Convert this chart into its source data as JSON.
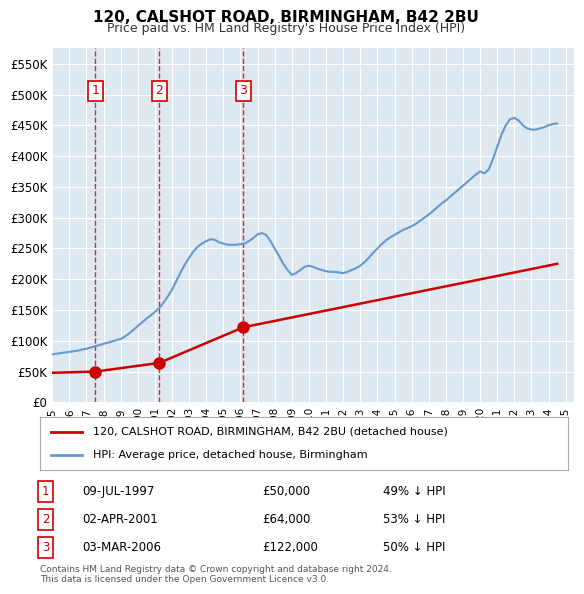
{
  "title": "120, CALSHOT ROAD, BIRMINGHAM, B42 2BU",
  "subtitle": "Price paid vs. HM Land Registry's House Price Index (HPI)",
  "background_color": "#dde8f0",
  "plot_bg_color": "#dde8f0",
  "hpi_color": "#6699cc",
  "price_color": "#cc0000",
  "ylim": [
    0,
    575000
  ],
  "yticks": [
    0,
    50000,
    100000,
    150000,
    200000,
    250000,
    300000,
    350000,
    400000,
    450000,
    500000,
    550000
  ],
  "ytick_labels": [
    "£0",
    "£50K",
    "£100K",
    "£150K",
    "£200K",
    "£250K",
    "£300K",
    "£350K",
    "£400K",
    "£450K",
    "£500K",
    "£550K"
  ],
  "xlim_start": 1995.0,
  "xlim_end": 2025.5,
  "transactions": [
    {
      "year": 1997.52,
      "price": 50000,
      "label": "1",
      "hpi_pct": "49% ↓ HPI",
      "date": "09-JUL-1997"
    },
    {
      "year": 2001.25,
      "price": 64000,
      "label": "2",
      "hpi_pct": "53% ↓ HPI",
      "date": "02-APR-2001"
    },
    {
      "year": 2006.17,
      "price": 122000,
      "label": "3",
      "hpi_pct": "50% ↓ HPI",
      "date": "03-MAR-2006"
    }
  ],
  "legend_line1": "120, CALSHOT ROAD, BIRMINGHAM, B42 2BU (detached house)",
  "legend_line2": "HPI: Average price, detached house, Birmingham",
  "footer": "Contains HM Land Registry data © Crown copyright and database right 2024.\nThis data is licensed under the Open Government Licence v3.0.",
  "hpi_data_x": [
    1995.0,
    1995.25,
    1995.5,
    1995.75,
    1996.0,
    1996.25,
    1996.5,
    1996.75,
    1997.0,
    1997.25,
    1997.5,
    1997.75,
    1998.0,
    1998.25,
    1998.5,
    1998.75,
    1999.0,
    1999.25,
    1999.5,
    1999.75,
    2000.0,
    2000.25,
    2000.5,
    2000.75,
    2001.0,
    2001.25,
    2001.5,
    2001.75,
    2002.0,
    2002.25,
    2002.5,
    2002.75,
    2003.0,
    2003.25,
    2003.5,
    2003.75,
    2004.0,
    2004.25,
    2004.5,
    2004.75,
    2005.0,
    2005.25,
    2005.5,
    2005.75,
    2006.0,
    2006.25,
    2006.5,
    2006.75,
    2007.0,
    2007.25,
    2007.5,
    2007.75,
    2008.0,
    2008.25,
    2008.5,
    2008.75,
    2009.0,
    2009.25,
    2009.5,
    2009.75,
    2010.0,
    2010.25,
    2010.5,
    2010.75,
    2011.0,
    2011.25,
    2011.5,
    2011.75,
    2012.0,
    2012.25,
    2012.5,
    2012.75,
    2013.0,
    2013.25,
    2013.5,
    2013.75,
    2014.0,
    2014.25,
    2014.5,
    2014.75,
    2015.0,
    2015.25,
    2015.5,
    2015.75,
    2016.0,
    2016.25,
    2016.5,
    2016.75,
    2017.0,
    2017.25,
    2017.5,
    2017.75,
    2018.0,
    2018.25,
    2018.5,
    2018.75,
    2019.0,
    2019.25,
    2019.5,
    2019.75,
    2020.0,
    2020.25,
    2020.5,
    2020.75,
    2021.0,
    2021.25,
    2021.5,
    2021.75,
    2022.0,
    2022.25,
    2022.5,
    2022.75,
    2023.0,
    2023.25,
    2023.5,
    2023.75,
    2024.0,
    2024.25,
    2024.5
  ],
  "hpi_data_y": [
    78000,
    79000,
    80000,
    81000,
    82000,
    83000,
    84000,
    86000,
    87000,
    89000,
    91000,
    93000,
    95000,
    97000,
    99000,
    101000,
    103000,
    107000,
    112000,
    118000,
    124000,
    130000,
    136000,
    141000,
    147000,
    153000,
    162000,
    172000,
    183000,
    197000,
    211000,
    224000,
    235000,
    245000,
    253000,
    258000,
    262000,
    265000,
    264000,
    260000,
    258000,
    256000,
    256000,
    256000,
    257000,
    258000,
    262000,
    267000,
    273000,
    275000,
    272000,
    262000,
    250000,
    238000,
    225000,
    215000,
    207000,
    210000,
    215000,
    220000,
    222000,
    220000,
    217000,
    215000,
    213000,
    212000,
    212000,
    211000,
    210000,
    212000,
    215000,
    218000,
    222000,
    228000,
    235000,
    243000,
    250000,
    257000,
    263000,
    268000,
    272000,
    276000,
    280000,
    283000,
    286000,
    290000,
    295000,
    300000,
    305000,
    311000,
    317000,
    323000,
    328000,
    334000,
    340000,
    346000,
    352000,
    358000,
    364000,
    370000,
    375000,
    372000,
    378000,
    395000,
    415000,
    435000,
    450000,
    460000,
    462000,
    458000,
    450000,
    445000,
    443000,
    443000,
    445000,
    447000,
    450000,
    452000,
    453000
  ],
  "price_data_x": [
    1995.0,
    1997.52,
    2001.25,
    2006.17,
    2024.5
  ],
  "price_data_y": [
    48000,
    50000,
    64000,
    122000,
    225000
  ]
}
